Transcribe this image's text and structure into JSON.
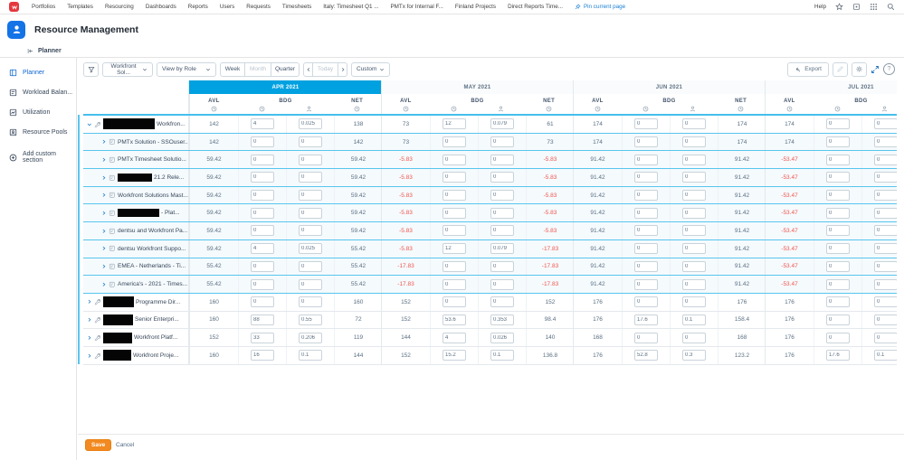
{
  "top_nav": {
    "items": [
      "Portfolios",
      "Templates",
      "Resourcing",
      "Dashboards",
      "Reports",
      "Users",
      "Requests",
      "Timesheets",
      "Italy: Timesheet Q1 ...",
      "PMTx for Internal F...",
      "Finland Projects",
      "Direct Reports Time..."
    ],
    "pin_label": "Pin current page",
    "help_label": "Help"
  },
  "header": {
    "title": "Resource Management"
  },
  "back_link": {
    "label": "Planner"
  },
  "sidebar": {
    "items": [
      {
        "label": "Planner",
        "icon": "planner-icon",
        "selected": true,
        "separated": false
      },
      {
        "label": "Workload Balan...",
        "icon": "workload-balancer-icon",
        "selected": false,
        "separated": false
      },
      {
        "label": "Utilization",
        "icon": "utilization-icon",
        "selected": false,
        "separated": false
      },
      {
        "label": "Resource Pools",
        "icon": "resource-pools-icon",
        "selected": false,
        "separated": false
      },
      {
        "label": "Add custom section",
        "icon": "plus-circle-icon",
        "selected": false,
        "separated": true
      }
    ]
  },
  "toolbar": {
    "filter_value": "Workfront Sol...",
    "view_value": "View by Role",
    "week_label": "Week",
    "month_label": "Month",
    "quarter_label": "Quarter",
    "today_label": "Today",
    "custom_label": "Custom",
    "export_label": "Export",
    "help_glyph": "?"
  },
  "grid": {
    "months": [
      {
        "label": "APR 2021",
        "selected": true
      },
      {
        "label": "MAY 2021",
        "selected": false
      },
      {
        "label": "JUN 2021",
        "selected": false
      },
      {
        "label": "JUL 2021",
        "selected": false
      }
    ],
    "col_labels": {
      "avl": "AVL",
      "bdg": "BDG",
      "net": "NET"
    },
    "col_icons": [
      "clock-icon",
      "clock-icon",
      "person-icon",
      "clock-icon"
    ]
  },
  "rows": [
    {
      "type": "role",
      "expanded": true,
      "redacted": true,
      "redact_w": 57,
      "name": "Workfron...",
      "months": [
        [
          "142",
          "4",
          "0.025",
          "138"
        ],
        [
          "73",
          "12",
          "0.079",
          "61"
        ],
        [
          "174",
          "0",
          "0",
          "174"
        ],
        [
          "174",
          "0",
          "0",
          ""
        ]
      ]
    },
    {
      "type": "project",
      "expanded": false,
      "redacted": false,
      "redact_w": 0,
      "name": "PMTx Solution - SSOuser...",
      "months": [
        [
          "142",
          "0",
          "0",
          "142"
        ],
        [
          "73",
          "0",
          "0",
          "73"
        ],
        [
          "174",
          "0",
          "0",
          "174"
        ],
        [
          "174",
          "0",
          "0",
          ""
        ]
      ]
    },
    {
      "type": "project",
      "expanded": false,
      "redacted": false,
      "redact_w": 0,
      "name": "PMTx Timesheet Solutio...",
      "months": [
        [
          "59.42",
          "0",
          "0",
          "59.42"
        ],
        [
          "-5.83",
          "0",
          "0",
          "-5.83"
        ],
        [
          "91.42",
          "0",
          "0",
          "91.42"
        ],
        [
          "-53.47",
          "0",
          "0",
          ""
        ]
      ]
    },
    {
      "type": "project",
      "expanded": false,
      "redacted": true,
      "redact_w": 38,
      "name": "21.2 Rele...",
      "months": [
        [
          "59.42",
          "0",
          "0",
          "59.42"
        ],
        [
          "-5.83",
          "0",
          "0",
          "-5.83"
        ],
        [
          "91.42",
          "0",
          "0",
          "91.42"
        ],
        [
          "-53.47",
          "0",
          "0",
          ""
        ]
      ]
    },
    {
      "type": "project",
      "expanded": false,
      "redacted": false,
      "redact_w": 0,
      "name": "Workfront Solutions Mast...",
      "months": [
        [
          "59.42",
          "0",
          "0",
          "59.42"
        ],
        [
          "-5.83",
          "0",
          "0",
          "-5.83"
        ],
        [
          "91.42",
          "0",
          "0",
          "91.42"
        ],
        [
          "-53.47",
          "0",
          "0",
          ""
        ]
      ]
    },
    {
      "type": "project",
      "expanded": false,
      "redacted": true,
      "redact_w": 46,
      "name": "- Plat...",
      "months": [
        [
          "59.42",
          "0",
          "0",
          "59.42"
        ],
        [
          "-5.83",
          "0",
          "0",
          "-5.83"
        ],
        [
          "91.42",
          "0",
          "0",
          "91.42"
        ],
        [
          "-53.47",
          "0",
          "0",
          ""
        ]
      ]
    },
    {
      "type": "project",
      "expanded": false,
      "redacted": false,
      "redact_w": 0,
      "name": "dentsu and Workfront Pa...",
      "months": [
        [
          "59.42",
          "0",
          "0",
          "59.42"
        ],
        [
          "-5.83",
          "0",
          "0",
          "-5.83"
        ],
        [
          "91.42",
          "0",
          "0",
          "91.42"
        ],
        [
          "-53.47",
          "0",
          "0",
          ""
        ]
      ]
    },
    {
      "type": "project",
      "expanded": false,
      "redacted": false,
      "redact_w": 0,
      "name": "dentsu Workfront Suppo...",
      "months": [
        [
          "59.42",
          "4",
          "0.025",
          "55.42"
        ],
        [
          "-5.83",
          "12",
          "0.079",
          "-17.83"
        ],
        [
          "91.42",
          "0",
          "0",
          "91.42"
        ],
        [
          "-53.47",
          "0",
          "0",
          ""
        ]
      ]
    },
    {
      "type": "project",
      "expanded": false,
      "redacted": false,
      "redact_w": 0,
      "name": "EMEA - Netherlands - Ti...",
      "months": [
        [
          "55.42",
          "0",
          "0",
          "55.42"
        ],
        [
          "-17.83",
          "0",
          "0",
          "-17.83"
        ],
        [
          "91.42",
          "0",
          "0",
          "91.42"
        ],
        [
          "-53.47",
          "0",
          "0",
          ""
        ]
      ]
    },
    {
      "type": "project",
      "expanded": false,
      "redacted": false,
      "redact_w": 0,
      "name": "America's - 2021 - Times...",
      "months": [
        [
          "55.42",
          "0",
          "0",
          "55.42"
        ],
        [
          "-17.83",
          "0",
          "0",
          "-17.83"
        ],
        [
          "91.42",
          "0",
          "0",
          "91.42"
        ],
        [
          "-53.47",
          "0",
          "0",
          ""
        ]
      ]
    },
    {
      "type": "role",
      "expanded": false,
      "redacted": true,
      "redact_w": 34,
      "name": "Programme Dir...",
      "months": [
        [
          "160",
          "0",
          "0",
          "160"
        ],
        [
          "152",
          "0",
          "0",
          "152"
        ],
        [
          "176",
          "0",
          "0",
          "176"
        ],
        [
          "176",
          "0",
          "0",
          ""
        ]
      ]
    },
    {
      "type": "role",
      "expanded": false,
      "redacted": true,
      "redact_w": 33,
      "name": "Senior Enterpri...",
      "months": [
        [
          "160",
          "88",
          "0.55",
          "72"
        ],
        [
          "152",
          "53.6",
          "0.353",
          "98.4"
        ],
        [
          "176",
          "17.6",
          "0.1",
          "158.4"
        ],
        [
          "176",
          "0",
          "0",
          ""
        ]
      ]
    },
    {
      "type": "role",
      "expanded": false,
      "redacted": true,
      "redact_w": 32,
      "name": "Workfront Platf...",
      "months": [
        [
          "152",
          "33",
          "0.206",
          "119"
        ],
        [
          "144",
          "4",
          "0.026",
          "140"
        ],
        [
          "168",
          "0",
          "0",
          "168"
        ],
        [
          "176",
          "0",
          "0",
          ""
        ]
      ]
    },
    {
      "type": "role",
      "expanded": false,
      "redacted": true,
      "redact_w": 31,
      "name": "Workfront Proje...",
      "months": [
        [
          "160",
          "16",
          "0.1",
          "144"
        ],
        [
          "152",
          "15.2",
          "0.1",
          "136.8"
        ],
        [
          "176",
          "52.8",
          "0.3",
          "123.2"
        ],
        [
          "176",
          "17.6",
          "0.1",
          ""
        ]
      ]
    }
  ],
  "footer": {
    "save_label": "Save",
    "cancel_label": "Cancel"
  },
  "colors": {
    "accent_blue": "#00a1e0",
    "selection_cyan": "#58c5ee",
    "negative_red": "#f0564e",
    "save_orange": "#f28a21",
    "brand_red": "#e5373e",
    "link_blue": "#1a7fd4",
    "nav_selected_blue": "#0d66d0"
  }
}
